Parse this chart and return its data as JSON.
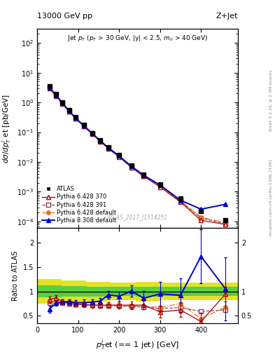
{
  "title_left": "13000 GeV pp",
  "title_right": "Z+Jet",
  "right_label1": "Rivet 3.1.10, ≥ 2.3M events",
  "right_label2": "mcplots.cern.ch [arXiv:1306.3436]",
  "watermark": "ATLAS_2017_I1514251",
  "xlabel": "$p_T^{j}$et (== 1 jet) [GeV]",
  "ylabel": "dσ/d$p_T^j$ et [pb/GeV]",
  "ylabel_ratio": "Ratio to ATLAS",
  "xlim": [
    0,
    490
  ],
  "ylim_main": [
    6e-05,
    300
  ],
  "ylim_ratio": [
    0.35,
    2.3
  ],
  "atlas_x": [
    30,
    46,
    62,
    78,
    94,
    114,
    134,
    154,
    174,
    200,
    230,
    260,
    300,
    350,
    400,
    460
  ],
  "atlas_y": [
    3.5,
    1.9,
    1.0,
    0.55,
    0.32,
    0.175,
    0.095,
    0.055,
    0.032,
    0.017,
    0.0076,
    0.0038,
    0.0018,
    0.0006,
    0.00023,
    0.00011
  ],
  "atlas_yerr": [
    0.35,
    0.18,
    0.09,
    0.05,
    0.028,
    0.015,
    0.009,
    0.005,
    0.003,
    0.0015,
    0.0007,
    0.00035,
    0.00017,
    6e-05,
    2.5e-05,
    1.3e-05
  ],
  "py6_370_x": [
    30,
    46,
    62,
    78,
    94,
    114,
    134,
    154,
    174,
    200,
    230,
    260,
    300,
    350,
    400,
    460
  ],
  "py6_370_y": [
    3.0,
    1.65,
    0.9,
    0.49,
    0.285,
    0.158,
    0.088,
    0.049,
    0.028,
    0.0148,
    0.0066,
    0.0033,
    0.00145,
    0.00045,
    0.00011,
    8e-05
  ],
  "py6_370_ratio": [
    0.83,
    0.87,
    0.79,
    0.75,
    0.74,
    0.73,
    0.72,
    0.72,
    0.72,
    0.72,
    0.72,
    0.72,
    0.58,
    0.62,
    0.38,
    0.95
  ],
  "py6_391_x": [
    30,
    46,
    62,
    78,
    94,
    114,
    134,
    154,
    174,
    200,
    230,
    260,
    300,
    350,
    400,
    460
  ],
  "py6_391_y": [
    3.1,
    1.72,
    0.93,
    0.51,
    0.296,
    0.162,
    0.091,
    0.051,
    0.029,
    0.0154,
    0.0068,
    0.0034,
    0.0016,
    0.00048,
    0.00013,
    8.5e-05
  ],
  "py6_391_ratio": [
    0.77,
    0.76,
    0.77,
    0.76,
    0.73,
    0.73,
    0.72,
    0.71,
    0.7,
    0.7,
    0.69,
    0.68,
    0.65,
    0.67,
    0.59,
    0.62
  ],
  "py6_def_x": [
    30,
    46,
    62,
    78,
    94,
    114,
    134,
    154,
    174,
    200,
    230,
    260,
    300,
    350,
    400,
    460
  ],
  "py6_def_y": [
    3.2,
    1.78,
    0.96,
    0.52,
    0.303,
    0.166,
    0.093,
    0.052,
    0.03,
    0.016,
    0.0071,
    0.0035,
    0.00165,
    0.0005,
    0.00014,
    9e-05
  ],
  "py6_def_ratio": [
    0.79,
    0.78,
    0.77,
    0.76,
    0.74,
    0.73,
    0.72,
    0.71,
    0.7,
    0.71,
    0.7,
    0.7,
    0.67,
    0.75,
    0.44,
    0.68
  ],
  "py8_def_x": [
    30,
    46,
    62,
    78,
    94,
    114,
    134,
    154,
    174,
    200,
    230,
    260,
    300,
    350,
    400,
    460
  ],
  "py8_def_y": [
    3.2,
    1.75,
    0.95,
    0.52,
    0.3,
    0.165,
    0.092,
    0.052,
    0.03,
    0.016,
    0.0072,
    0.0036,
    0.00168,
    0.00052,
    0.00026,
    0.00038
  ],
  "py8_def_ratio": [
    0.64,
    0.76,
    0.78,
    0.79,
    0.77,
    0.77,
    0.78,
    0.8,
    0.93,
    0.9,
    1.01,
    0.86,
    0.95,
    0.92,
    1.72,
    1.05
  ],
  "band_edges": [
    0,
    60,
    120,
    180,
    240,
    300,
    360,
    420,
    490
  ],
  "band_yellow_lo": [
    0.75,
    0.78,
    0.8,
    0.82,
    0.8,
    0.82,
    0.82,
    0.82,
    0.82
  ],
  "band_yellow_hi": [
    1.25,
    1.22,
    1.2,
    1.18,
    1.2,
    1.18,
    1.18,
    1.18,
    1.18
  ],
  "band_green_lo": [
    0.88,
    0.89,
    0.9,
    0.91,
    0.9,
    0.91,
    0.91,
    0.91,
    0.91
  ],
  "band_green_hi": [
    1.12,
    1.11,
    1.1,
    1.09,
    1.1,
    1.09,
    1.09,
    1.09,
    1.09
  ],
  "color_atlas": "#000000",
  "color_py6_370": "#aa0000",
  "color_py6_391": "#8b4060",
  "color_py6_def": "#e87020",
  "color_py8_def": "#0000cc",
  "green_color": "#44cc44",
  "yellow_color": "#dddd00"
}
